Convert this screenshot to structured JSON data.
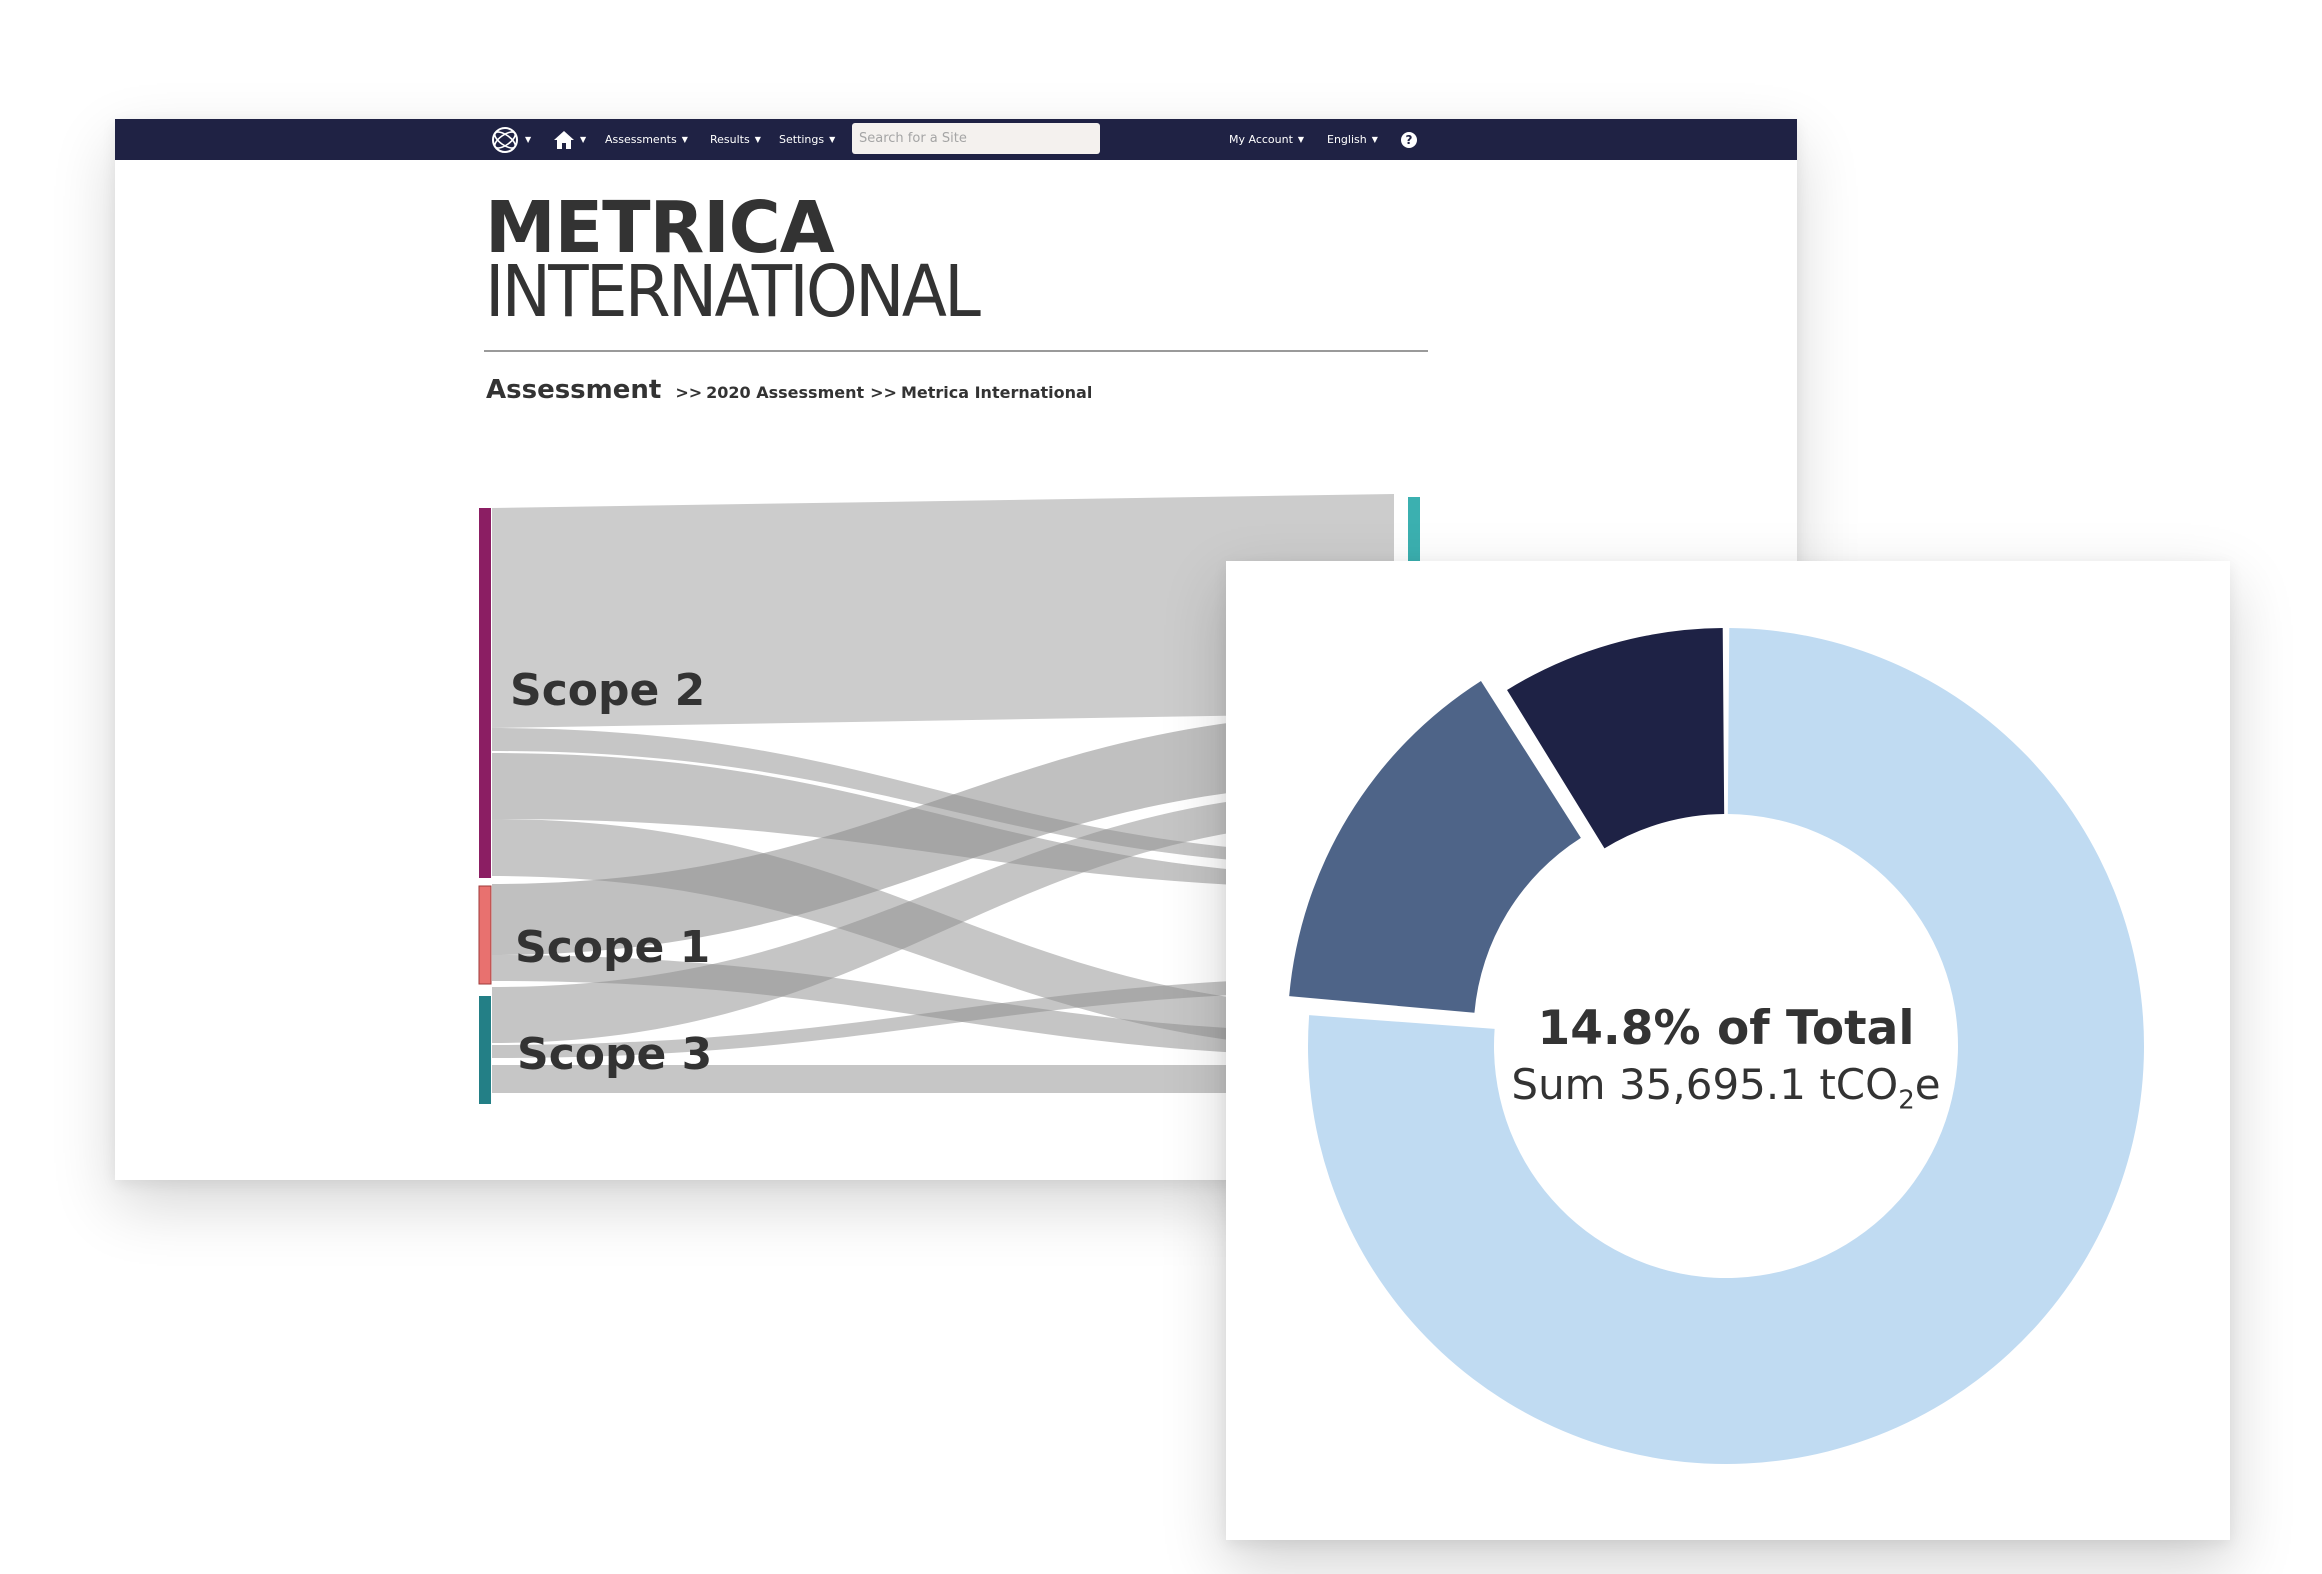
{
  "navbar": {
    "logo_icon": "globe-logo-icon",
    "home_icon": "home-icon",
    "menu": [
      "Assessments",
      "Results",
      "Settings"
    ],
    "search_placeholder": "Search for a Site",
    "right_menu": [
      "My Account",
      "English"
    ],
    "help_icon": "question-icon",
    "colors": {
      "background": "#1f2244",
      "text": "#ffffff"
    }
  },
  "brand": {
    "line1": "METRICA",
    "line2": "INTERNATIONAL"
  },
  "breadcrumb": {
    "title": "Assessment",
    "separator": ">>",
    "items": [
      "2020 Assessment",
      "Metrica International"
    ]
  },
  "sankey": {
    "nodes": [
      {
        "label": "Scope 2",
        "color": "#8b1e63"
      },
      {
        "label": "Scope 1",
        "color": "#e8716f"
      },
      {
        "label": "Scope 3",
        "color": "#237f86"
      },
      {
        "label": "",
        "color": "#3bb0b0"
      }
    ],
    "link_color": "#c8c8c8"
  },
  "chart_data": {
    "type": "pie",
    "donut": true,
    "slices": [
      {
        "value": 76.3,
        "color": "#c0dbf2"
      },
      {
        "value": 14.8,
        "color": "#4e6488",
        "exploded": true
      },
      {
        "value": 8.9,
        "color": "#1e2245"
      }
    ],
    "center_title": "14.8% of Total",
    "center_sum": "Sum 35,695.1 tCO",
    "center_sum_sub": "2",
    "center_sum_suffix": "e"
  }
}
